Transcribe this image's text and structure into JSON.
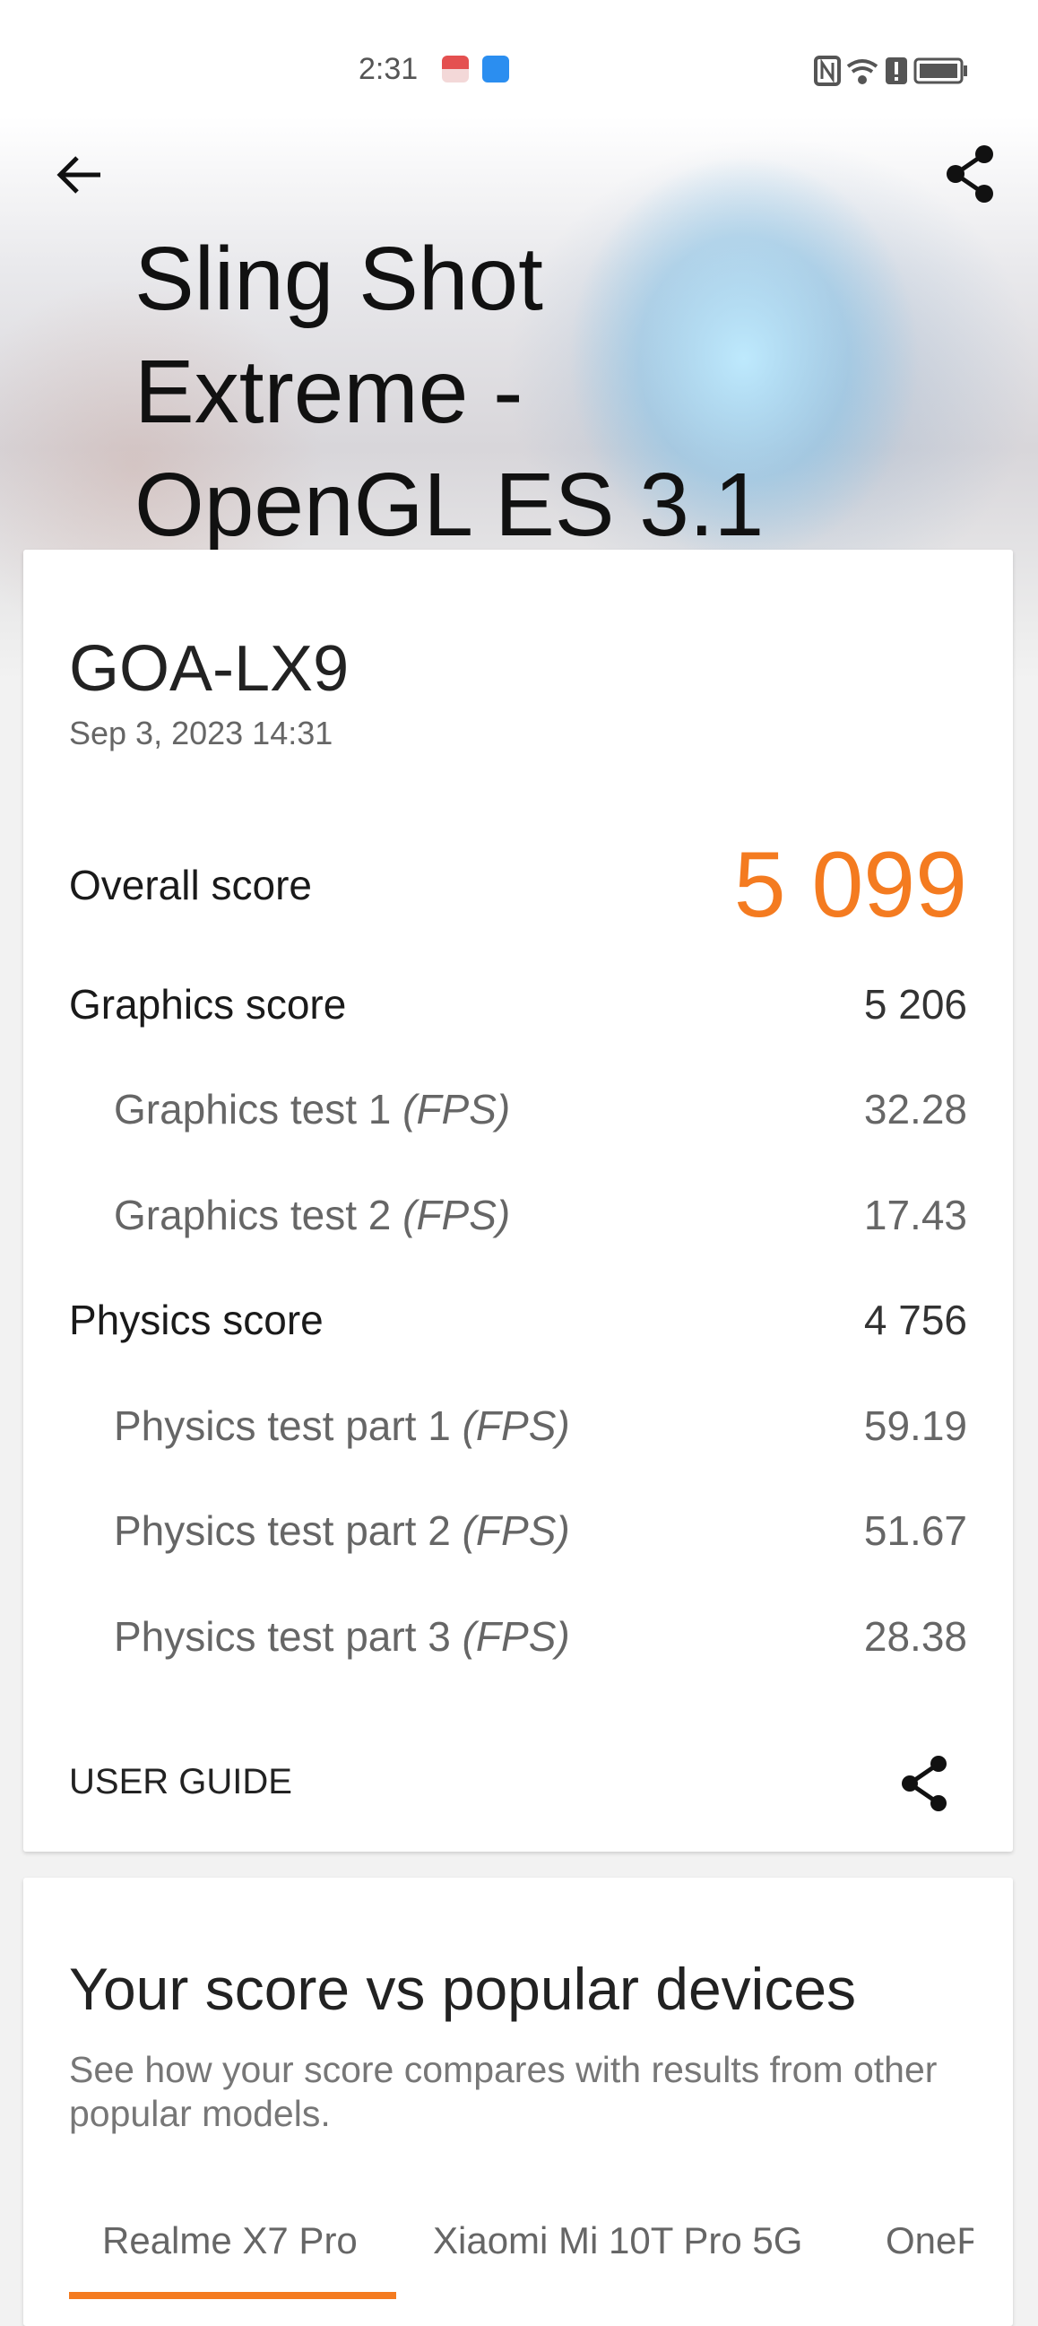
{
  "status_bar": {
    "time": "2:31",
    "notification_icons": [
      "red-box-app-icon",
      "cloud-app-icon"
    ],
    "system_icons": [
      "nfc-icon",
      "wifi-icon",
      "alert-icon",
      "battery-icon"
    ]
  },
  "header": {
    "title_lines": [
      "Sling Shot",
      "Extreme -",
      "OpenGL ES 3.1"
    ],
    "back_icon": "arrow-left-icon",
    "share_icon": "share-icon"
  },
  "result": {
    "device": "GOA-LX9",
    "date": "Sep 3, 2023 14:31",
    "overall": {
      "label": "Overall score",
      "value": "5 099"
    },
    "rows": [
      {
        "label": "Graphics score",
        "unit": "",
        "value": "5 206",
        "sub": false
      },
      {
        "label": "Graphics test 1 ",
        "unit": "(FPS)",
        "value": "32.28",
        "sub": true
      },
      {
        "label": "Graphics test 2 ",
        "unit": "(FPS)",
        "value": "17.43",
        "sub": true
      },
      {
        "label": "Physics score",
        "unit": "",
        "value": "4 756",
        "sub": false
      },
      {
        "label": "Physics test part 1 ",
        "unit": "(FPS)",
        "value": "59.19",
        "sub": true
      },
      {
        "label": "Physics test part 2 ",
        "unit": "(FPS)",
        "value": "51.67",
        "sub": true
      },
      {
        "label": "Physics test part 3 ",
        "unit": "(FPS)",
        "value": "28.38",
        "sub": true
      }
    ],
    "user_guide": "USER GUIDE"
  },
  "compare": {
    "heading": "Your score vs popular devices",
    "subtitle": "See how your score compares with results from other popular models.",
    "tabs": [
      "Realme X7 Pro",
      "Xiaomi Mi 10T Pro 5G",
      "OneP"
    ],
    "active_tab": 0
  },
  "colors": {
    "accent": "#f47b20"
  }
}
